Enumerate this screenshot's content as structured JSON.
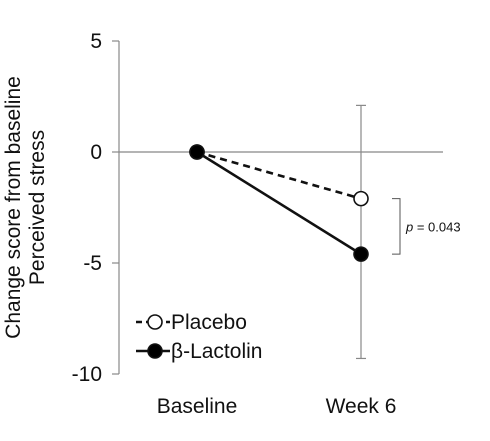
{
  "chart_data": {
    "type": "line",
    "categories": [
      "Baseline",
      "Week 6"
    ],
    "ylabel_lines": [
      "Change score from baseline",
      "Perceived stress"
    ],
    "yticks": [
      5,
      0,
      -5,
      -10
    ],
    "ylim": [
      -10,
      5
    ],
    "series": [
      {
        "name": "Placebo",
        "values": [
          0,
          -2.1
        ],
        "line_style": "dashed",
        "marker": "open-circle",
        "error_bar": {
          "category": "Week 6",
          "upper": 2.1,
          "lower": -9.3
        }
      },
      {
        "name": "β-Lactolin",
        "values": [
          0,
          -4.6
        ],
        "line_style": "solid",
        "marker": "filled-circle",
        "error_bar": null
      }
    ],
    "annotation": {
      "p_symbol": "p",
      "p_value_text": " = 0.043"
    },
    "legend_position": "bottom-left",
    "grid": false,
    "colors": {
      "line": "#111111",
      "axis": "#888888",
      "placebo_fill": "#ffffff",
      "lactolin_fill": "#000000"
    }
  }
}
